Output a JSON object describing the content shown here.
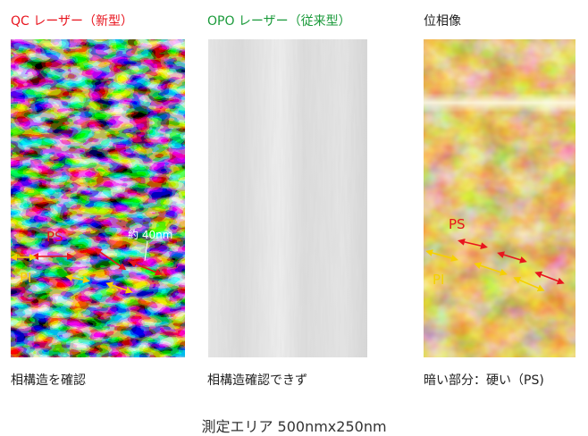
{
  "panels": [
    {
      "title": "QC レーザー（新型）",
      "title_color": "#e8141e",
      "caption": "相構造を確認"
    },
    {
      "title": "OPO レーザー（従来型）",
      "title_color": "#1a9a3a",
      "caption": "相構造確認できず"
    },
    {
      "title": "位相像",
      "title_color": "#222222",
      "caption": "暗い部分：硬い（PS)"
    }
  ],
  "annotations": {
    "qc_ps": "PS",
    "qc_pi": "PI",
    "qc_scale": "約 40nm",
    "phase_ps": "PS",
    "phase_pi": "PI"
  },
  "colors": {
    "ps_arrow": "#e8141e",
    "pi_arrow": "#f5d000"
  },
  "footer": "測定エリア 500nmx250nm"
}
